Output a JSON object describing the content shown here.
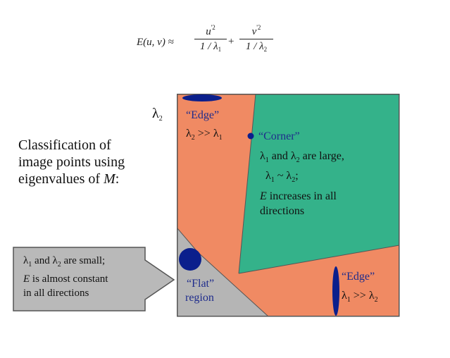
{
  "formula": {
    "lhs": "E(u, v) ≈",
    "term1_numerator": "u",
    "term1_numerator_sup": "'2",
    "term1_denominator": "1 / λ",
    "term1_denominator_sub": "1",
    "plus": "+",
    "term2_numerator": "v",
    "term2_numerator_sup": "'2",
    "term2_denominator": "1 / λ",
    "term2_denominator_sub": "2"
  },
  "classification": {
    "line1": "Classification of",
    "line2": "image points using",
    "line3_prefix": "eigenvalues of ",
    "line3_var": "M",
    "line3_suffix": ":"
  },
  "axis": {
    "lambda": "λ",
    "sub": "2"
  },
  "regions": {
    "edge_top": {
      "title": "“Edge”",
      "rel_a": "λ",
      "rel_a_sub": "2",
      "rel_op": " >> ",
      "rel_b": "λ",
      "rel_b_sub": "1"
    },
    "corner": {
      "title": "“Corner”",
      "l1a": "λ",
      "l1a_sub": "1",
      "l1_mid": " and ",
      "l1b": "λ",
      "l1b_sub": "2",
      "l1_end": " are large,",
      "l2a": "λ",
      "l2a_sub": "1",
      "l2_op": " ~ ",
      "l2b": "λ",
      "l2b_sub": "2",
      "l2_end": ";",
      "l3_var": "E",
      "l3_rest": " increases in all",
      "l4": "directions"
    },
    "flat": {
      "line1": "“Flat”",
      "line2": "region"
    },
    "edge_bottom": {
      "title": "“Edge”",
      "rel_a": "λ",
      "rel_a_sub": "1",
      "rel_op": " >> ",
      "rel_b": "λ",
      "rel_b_sub": "2"
    }
  },
  "flat_callout": {
    "l1a": "λ",
    "l1a_sub": "1",
    "l1_mid": " and ",
    "l1b": "λ",
    "l1b_sub": "2",
    "l1_end": " are small;",
    "l2_var": "E",
    "l2_rest": " is almost constant",
    "l3": "in all directions"
  },
  "colors": {
    "edge_region": "#f08a63",
    "corner_region": "#34b28a",
    "flat_region": "#b5b5b5",
    "callout_fill": "#b9b9b9",
    "ellipse": "#0b1f8c",
    "label_blue": "#1f2c8c",
    "border": "#555555"
  }
}
